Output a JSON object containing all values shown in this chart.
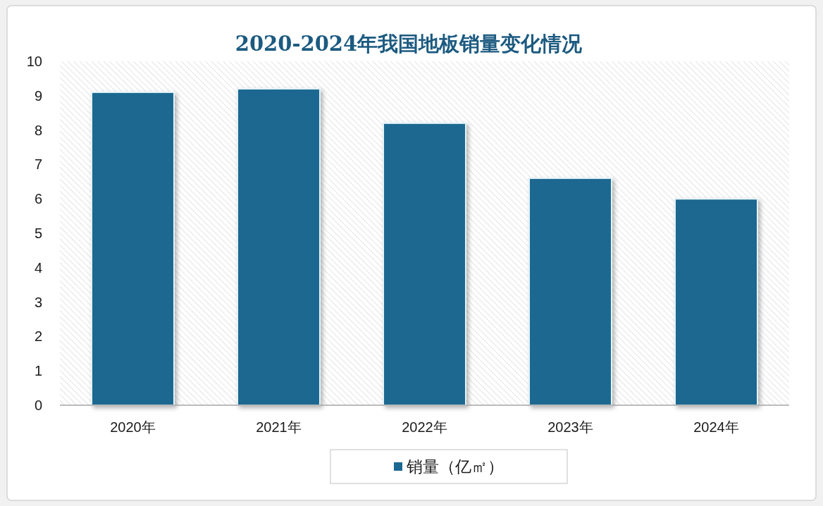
{
  "chart_data": {
    "type": "bar",
    "title": "2020-2024年我国地板销量变化情况",
    "categories": [
      "2020年",
      "2021年",
      "2022年",
      "2023年",
      "2024年"
    ],
    "series": [
      {
        "name": "销量（亿㎡）",
        "color": "#1b6890",
        "values": [
          9.1,
          9.2,
          8.2,
          6.6,
          6.0
        ]
      }
    ],
    "ylim": [
      0,
      10
    ],
    "yticks": [
      0,
      1,
      2,
      3,
      4,
      5,
      6,
      7,
      8,
      9,
      10
    ],
    "legend": "bottom"
  }
}
